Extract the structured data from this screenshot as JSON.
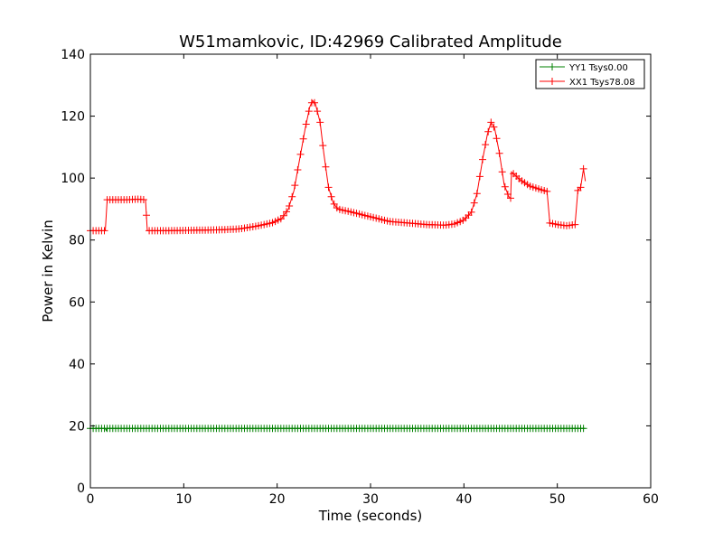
{
  "chart_data": {
    "type": "line",
    "title": "W51mamkovic, ID:42969 Calibrated Amplitude",
    "xlabel": "Time (seconds)",
    "ylabel": "Power in Kelvin",
    "xlim": [
      0,
      60
    ],
    "ylim": [
      0,
      140
    ],
    "xticks": [
      0,
      10,
      20,
      30,
      40,
      50,
      60
    ],
    "yticks": [
      0,
      20,
      40,
      60,
      80,
      100,
      120,
      140
    ],
    "grid": false,
    "legend_position": "top-right",
    "series": [
      {
        "name": "YY1 Tsys0.00",
        "color": "#008000",
        "marker": "plus",
        "points": [
          [
            0.0,
            19.2
          ],
          [
            1.6,
            19.2
          ],
          [
            1.7,
            18.5
          ],
          [
            1.8,
            19.2
          ],
          [
            5.9,
            19.2
          ],
          [
            6.0,
            19.2
          ],
          [
            11.7,
            19.2
          ],
          [
            20.0,
            19.2
          ],
          [
            30.0,
            19.2
          ],
          [
            40.0,
            19.2
          ],
          [
            45.0,
            19.2
          ],
          [
            49.0,
            19.2
          ],
          [
            53.0,
            19.2
          ]
        ]
      },
      {
        "name": "XX1 Tsys78.08",
        "color": "#ff0000",
        "marker": "plus",
        "points": [
          [
            0.0,
            83.0
          ],
          [
            1.6,
            83.0
          ],
          [
            1.8,
            93.0
          ],
          [
            4.0,
            93.0
          ],
          [
            5.0,
            93.2
          ],
          [
            5.9,
            93.0
          ],
          [
            6.1,
            83.0
          ],
          [
            8.0,
            83.0
          ],
          [
            11.7,
            83.2
          ],
          [
            14.0,
            83.3
          ],
          [
            16.0,
            83.6
          ],
          [
            18.0,
            84.6
          ],
          [
            19.5,
            85.6
          ],
          [
            20.5,
            87.0
          ],
          [
            21.2,
            90.0
          ],
          [
            21.8,
            96.0
          ],
          [
            22.4,
            106.0
          ],
          [
            23.0,
            116.0
          ],
          [
            23.5,
            123.0
          ],
          [
            23.8,
            125.0
          ],
          [
            24.1,
            124.0
          ],
          [
            24.6,
            118.0
          ],
          [
            25.0,
            108.0
          ],
          [
            25.5,
            97.0
          ],
          [
            26.0,
            92.0
          ],
          [
            26.5,
            90.0
          ],
          [
            28.0,
            89.0
          ],
          [
            30.0,
            87.5
          ],
          [
            32.0,
            86.0
          ],
          [
            34.0,
            85.5
          ],
          [
            36.0,
            85.0
          ],
          [
            38.0,
            84.8
          ],
          [
            39.0,
            85.2
          ],
          [
            40.0,
            86.5
          ],
          [
            40.8,
            89.0
          ],
          [
            41.4,
            95.0
          ],
          [
            42.0,
            106.0
          ],
          [
            42.5,
            114.0
          ],
          [
            42.9,
            118.0
          ],
          [
            43.3,
            116.0
          ],
          [
            43.8,
            108.0
          ],
          [
            44.3,
            98.0
          ],
          [
            44.8,
            94.0
          ],
          [
            45.0,
            93.5
          ],
          [
            45.1,
            102.0
          ],
          [
            46.0,
            99.5
          ],
          [
            47.0,
            97.5
          ],
          [
            48.0,
            96.5
          ],
          [
            48.9,
            95.7
          ],
          [
            49.2,
            85.5
          ],
          [
            50.0,
            85.0
          ],
          [
            51.0,
            84.6
          ],
          [
            51.9,
            85.0
          ],
          [
            52.2,
            96.0
          ],
          [
            52.5,
            97.0
          ],
          [
            52.8,
            103.0
          ],
          [
            53.0,
            99.0
          ]
        ]
      }
    ]
  }
}
